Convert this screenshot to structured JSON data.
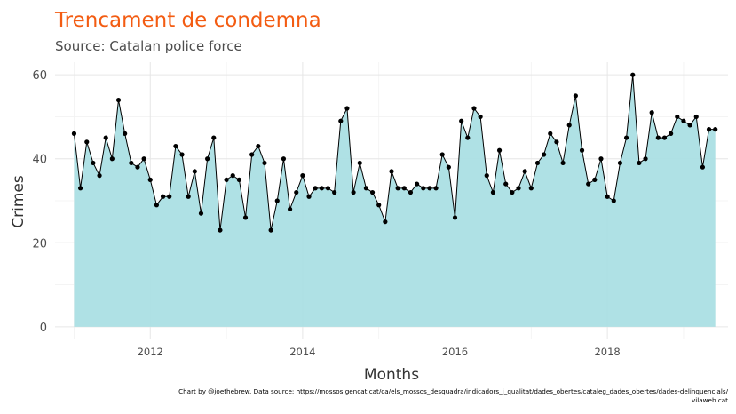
{
  "chart_data": {
    "type": "area",
    "title": "Trencament de condemna",
    "subtitle": "Source: Catalan police force",
    "xlabel": "Months",
    "ylabel": "Crimes",
    "caption_line1": "Chart by @joethebrew. Data source: https://mossos.gencat.cat/ca/els_mossos_desquadra/indicadors_i_qualitat/dades_obertes/cataleg_dades_obertes/dades-delinquencials/",
    "caption_line2": "vilaweb.cat",
    "x_start": "2011-01",
    "x_ticks": [
      "2012",
      "2014",
      "2016",
      "2018"
    ],
    "y_ticks": [
      "0",
      "20",
      "40",
      "60"
    ],
    "ylim": [
      -3,
      63
    ],
    "xlim": [
      "2010-10",
      "2019-08"
    ],
    "grid": true,
    "colors": {
      "area": "#abdfe4",
      "line": "#000000",
      "title": "#f35c12",
      "grid": "#e6e6e6"
    },
    "values": [
      46,
      33,
      44,
      39,
      36,
      45,
      40,
      54,
      46,
      39,
      38,
      40,
      35,
      29,
      31,
      31,
      43,
      41,
      31,
      37,
      27,
      40,
      45,
      23,
      35,
      36,
      35,
      26,
      41,
      43,
      39,
      23,
      30,
      40,
      28,
      32,
      36,
      31,
      33,
      33,
      33,
      32,
      49,
      52,
      32,
      39,
      33,
      32,
      29,
      25,
      37,
      33,
      33,
      32,
      34,
      33,
      33,
      33,
      41,
      38,
      26,
      49,
      45,
      52,
      50,
      36,
      32,
      42,
      34,
      32,
      33,
      37,
      33,
      39,
      41,
      46,
      44,
      39,
      48,
      55,
      42,
      34,
      35,
      40,
      31,
      30,
      39,
      45,
      60,
      39,
      40,
      51,
      45,
      45,
      46,
      50,
      49,
      48,
      50,
      38,
      47,
      47
    ]
  }
}
